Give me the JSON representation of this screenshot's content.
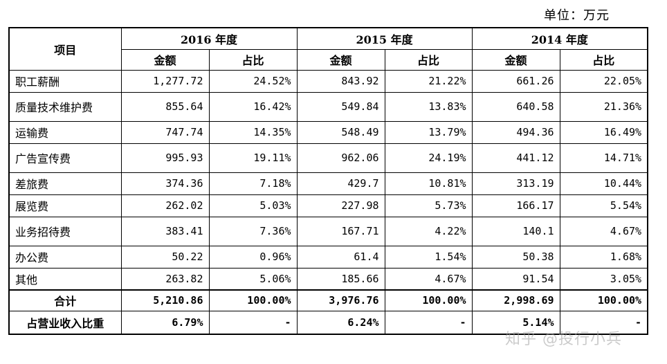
{
  "unit_label": "单位：万元",
  "header": {
    "item_label": "项目",
    "years": [
      "2016 年度",
      "2015 年度",
      "2014 年度"
    ],
    "amount_label": "金额",
    "share_label": "占比"
  },
  "rows": [
    {
      "name": "职工薪酬",
      "v": [
        "1,277.72",
        "24.52%",
        "843.92",
        "21.22%",
        "661.26",
        "22.05%"
      ]
    },
    {
      "name": "质量技术维护费",
      "v": [
        "855.64",
        "16.42%",
        "549.84",
        "13.83%",
        "640.58",
        "21.36%"
      ]
    },
    {
      "name": "运输费",
      "v": [
        "747.74",
        "14.35%",
        "548.49",
        "13.79%",
        "494.36",
        "16.49%"
      ]
    },
    {
      "name": "广告宣传费",
      "v": [
        "995.93",
        "19.11%",
        "962.06",
        "24.19%",
        "441.12",
        "14.71%"
      ]
    },
    {
      "name": "差旅费",
      "v": [
        "374.36",
        "7.18%",
        "429.7",
        "10.81%",
        "313.19",
        "10.44%"
      ]
    },
    {
      "name": "展览费",
      "v": [
        "262.02",
        "5.03%",
        "227.98",
        "5.73%",
        "166.17",
        "5.54%"
      ]
    },
    {
      "name": "业务招待费",
      "v": [
        "383.41",
        "7.36%",
        "167.71",
        "4.22%",
        "140.1",
        "4.67%"
      ]
    },
    {
      "name": "办公费",
      "v": [
        "50.22",
        "0.96%",
        "61.4",
        "1.54%",
        "50.38",
        "1.68%"
      ]
    },
    {
      "name": "其他",
      "v": [
        "263.82",
        "5.06%",
        "185.66",
        "4.67%",
        "91.54",
        "3.05%"
      ]
    }
  ],
  "total": {
    "name": "合计",
    "v": [
      "5,210.86",
      "100.00%",
      "3,976.76",
      "100.00%",
      "2,998.69",
      "100.00%"
    ]
  },
  "ratio": {
    "name": "占营业收入比重",
    "v": [
      "6.79%",
      "-",
      "6.24%",
      "-",
      "5.14%",
      "-"
    ]
  },
  "watermark": "知乎 @投行小兵"
}
